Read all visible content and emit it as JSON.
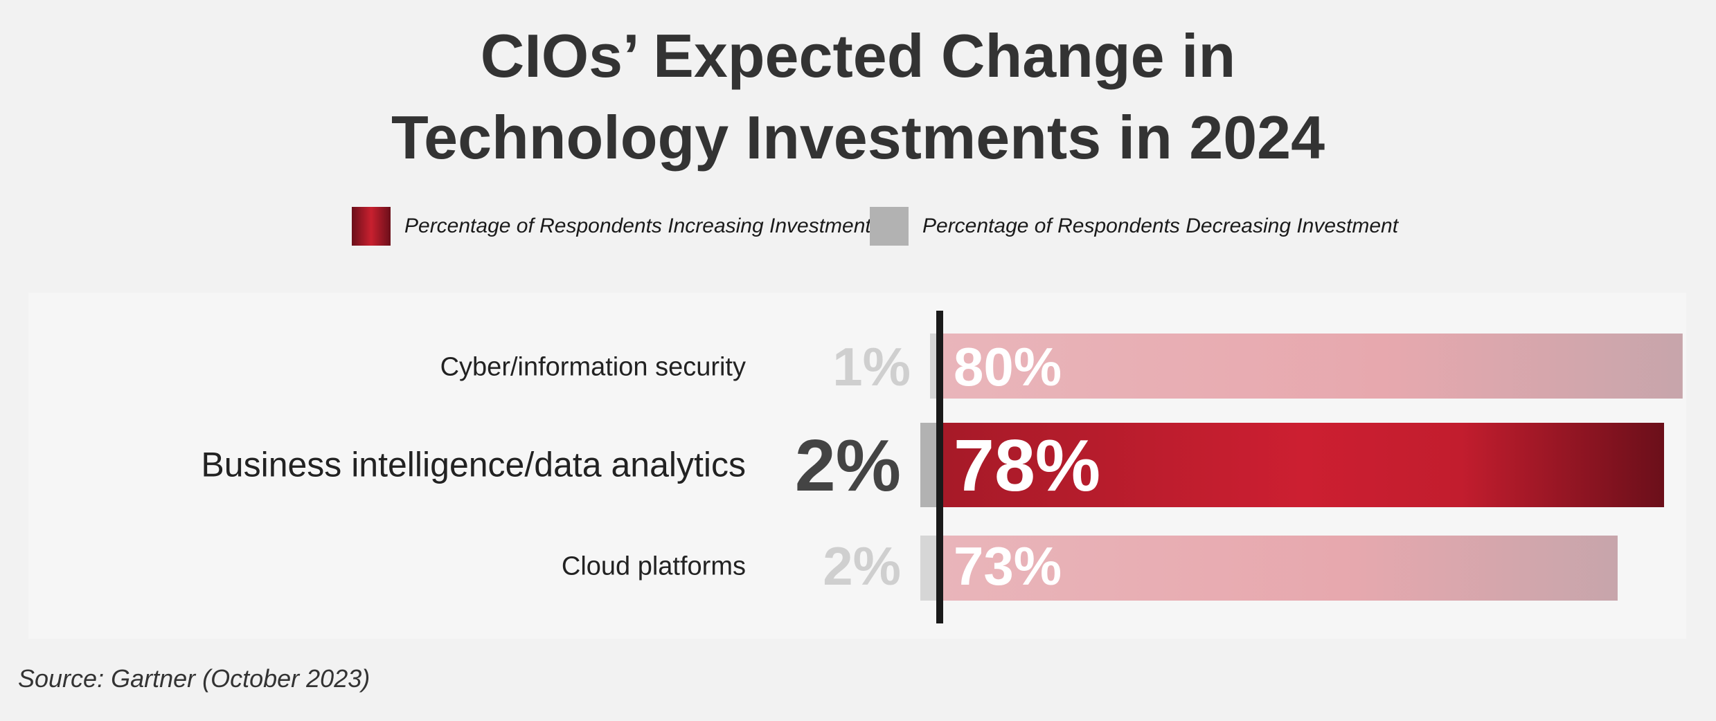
{
  "title_lines": [
    "CIOs’ Expected Change in",
    "Technology Investments in 2024"
  ],
  "legend": [
    {
      "label": "Percentage of Respondents Increasing Investment",
      "color": "#c8202f"
    },
    {
      "label": "Percentage of Respondents Decreasing Investment",
      "color": "#b2b2b2"
    }
  ],
  "colors": {
    "increase": "#c8202f",
    "increase_dark": "#6b0f1a",
    "increase_faded": "#e7a8ae",
    "decrease": "#b2b2b2",
    "decrease_faded": "#d6d6d6",
    "axis": "#1a1a1a",
    "text": "#333333",
    "panel": "#f6f6f6",
    "background": "#f2f2f2"
  },
  "chart_data": {
    "type": "bar",
    "orientation": "horizontal",
    "diverging": true,
    "categories": [
      "Cyber/information security",
      "Business intelligence/data analytics",
      "Cloud platforms"
    ],
    "highlighted_category": "Business intelligence/data analytics",
    "series": [
      {
        "name": "Percentage of Respondents Increasing Investment",
        "values": [
          80,
          78,
          73
        ]
      },
      {
        "name": "Percentage of Respondents Decreasing Investment",
        "values": [
          1,
          2,
          2
        ]
      }
    ],
    "value_labels": {
      "increase": [
        "80%",
        "78%",
        "73%"
      ],
      "decrease": [
        "1%",
        "2%",
        "2%"
      ]
    },
    "title": "CIOs’ Expected Change in Technology Investments in 2024",
    "legend_position": "top-center",
    "grid": false
  },
  "source": "Source: Gartner (October 2023)"
}
